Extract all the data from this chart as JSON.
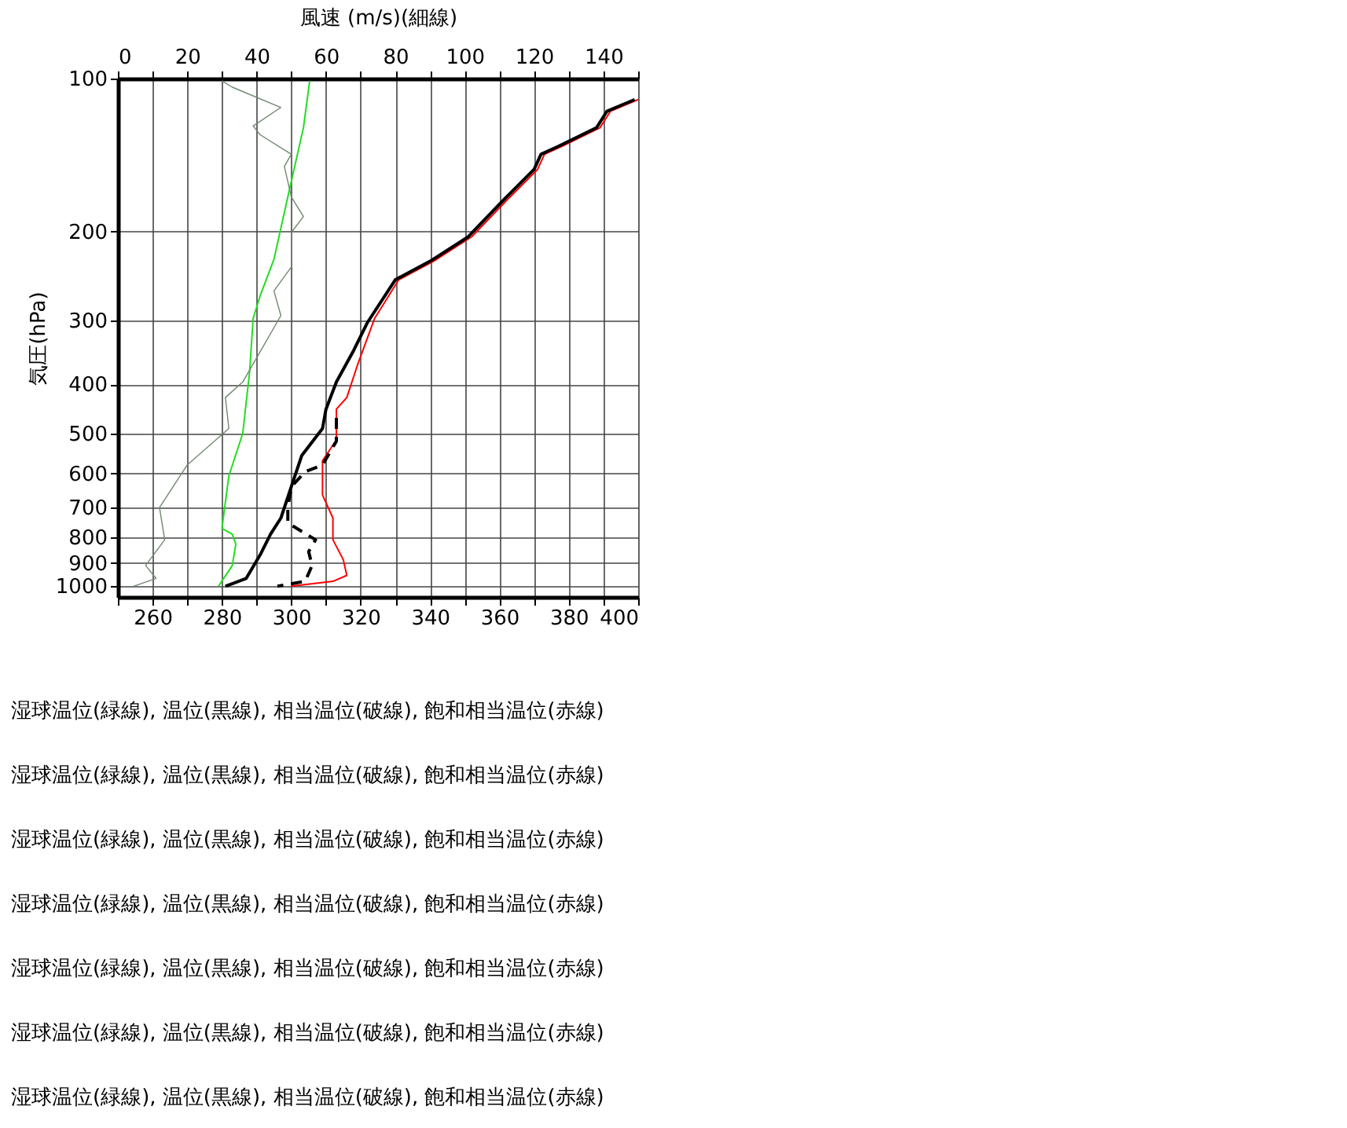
{
  "chart_data": {
    "type": "line",
    "x2label": "風速 (m/s)(細線)",
    "ylabel": "気圧(hPa)",
    "xlim": [
      250,
      400
    ],
    "xticks": [
      {
        "value": 250,
        "label": null
      },
      260,
      {
        "value": 270,
        "label": null
      },
      280,
      {
        "value": 290,
        "label": null
      },
      300,
      {
        "value": 310,
        "label": null
      },
      320,
      {
        "value": 330,
        "label": null
      },
      340,
      {
        "value": 350,
        "label": null
      },
      360,
      {
        "value": 370,
        "label": null
      },
      380,
      {
        "value": 390,
        "label": null
      },
      400
    ],
    "x2lim": [
      0,
      150
    ],
    "x2ticks": [
      0,
      {
        "value": 10,
        "label": null
      },
      20,
      {
        "value": 30,
        "label": null
      },
      40,
      {
        "value": 50,
        "label": null
      },
      60,
      {
        "value": 70,
        "label": null
      },
      80,
      {
        "value": 90,
        "label": null
      },
      100,
      {
        "value": 110,
        "label": null
      },
      120,
      {
        "value": 130,
        "label": null
      },
      140,
      {
        "value": 150,
        "label": null
      }
    ],
    "ylim": [
      1050,
      100
    ],
    "yticks": [
      100,
      200,
      300,
      400,
      500,
      600,
      700,
      800,
      900,
      1000
    ],
    "log": "y",
    "grid": true,
    "series": [
      {
        "color": "#708870",
        "axis": "x2",
        "line_style": "solid",
        "x": [
          30,
          33,
          47,
          39,
          41,
          50,
          48,
          50,
          53.5,
          50,
          50,
          45,
          47,
          40,
          36,
          31,
          32,
          20,
          12,
          13.5,
          8,
          11,
          4.5
        ],
        "values": [
          101,
          104,
          114,
          124,
          129,
          141,
          149,
          171,
          187,
          201,
          235,
          262,
          293,
          355,
          396,
          425,
          489,
          577,
          700,
          810,
          910,
          965,
          1000
        ]
      },
      {
        "color": "#22dd22",
        "line_style": "solid",
        "x": [
          305.3,
          303.5,
          299,
          295,
          291,
          289,
          288,
          286,
          282,
          280,
          283,
          284,
          283,
          279
        ],
        "values": [
          101,
          125,
          171,
          227,
          268,
          297,
          377,
          500,
          606,
          769,
          790,
          826,
          910,
          1000
        ]
      },
      {
        "color": "#ff0000",
        "line_style": "solid",
        "x": [
          400,
          392,
          389,
          378,
          373,
          371,
          362,
          352,
          341,
          331,
          324,
          319,
          316,
          313,
          313,
          309,
          309,
          312,
          312,
          315,
          316,
          312,
          300
        ],
        "values": [
          110,
          116,
          125,
          136,
          141,
          151,
          174,
          205,
          229,
          249,
          297,
          368,
          425,
          448,
          515,
          566,
          661,
          734,
          810,
          887,
          952,
          978,
          1000
        ]
      },
      {
        "color": "#000000",
        "line_style": "solid",
        "x": [
          399,
          391,
          388,
          377,
          372,
          370,
          361,
          351,
          340,
          330,
          322,
          318,
          313,
          310,
          309,
          303,
          300,
          297,
          294,
          291,
          287,
          281
        ],
        "values": [
          110,
          116,
          125,
          136,
          141,
          151,
          174,
          205,
          229,
          249,
          302,
          343,
          396,
          448,
          489,
          553,
          637,
          734,
          790,
          868,
          965,
          1000
        ]
      },
      {
        "color": "#000000",
        "line_style": "dashed",
        "x": [
          313,
          313,
          309,
          304,
          300,
          299,
          299,
          303,
          307,
          305,
          306,
          304,
          296
        ],
        "values": [
          466,
          518,
          577,
          595,
          637,
          700,
          750,
          780,
          810,
          855,
          910,
          978,
          1000
        ]
      }
    ],
    "annotations": [
      "湿球温位(緑線), 温位(黒線), 相当温位(破線), 飽和相当温位(赤線)",
      "湿球温位(緑線), 温位(黒線), 相当温位(破線), 飽和相当温位(赤線)",
      "湿球温位(緑線), 温位(黒線), 相当温位(破線), 飽和相当温位(赤線)",
      "湿球温位(緑線), 温位(黒線), 相当温位(破線), 飽和相当温位(赤線)",
      "湿球温位(緑線), 温位(黒線), 相当温位(破線), 飽和相当温位(赤線)",
      "湿球温位(緑線), 温位(黒線), 相当温位(破線), 飽和相当温位(赤線)",
      "湿球温位(緑線), 温位(黒線), 相当温位(破線), 飽和相当温位(赤線)"
    ]
  }
}
